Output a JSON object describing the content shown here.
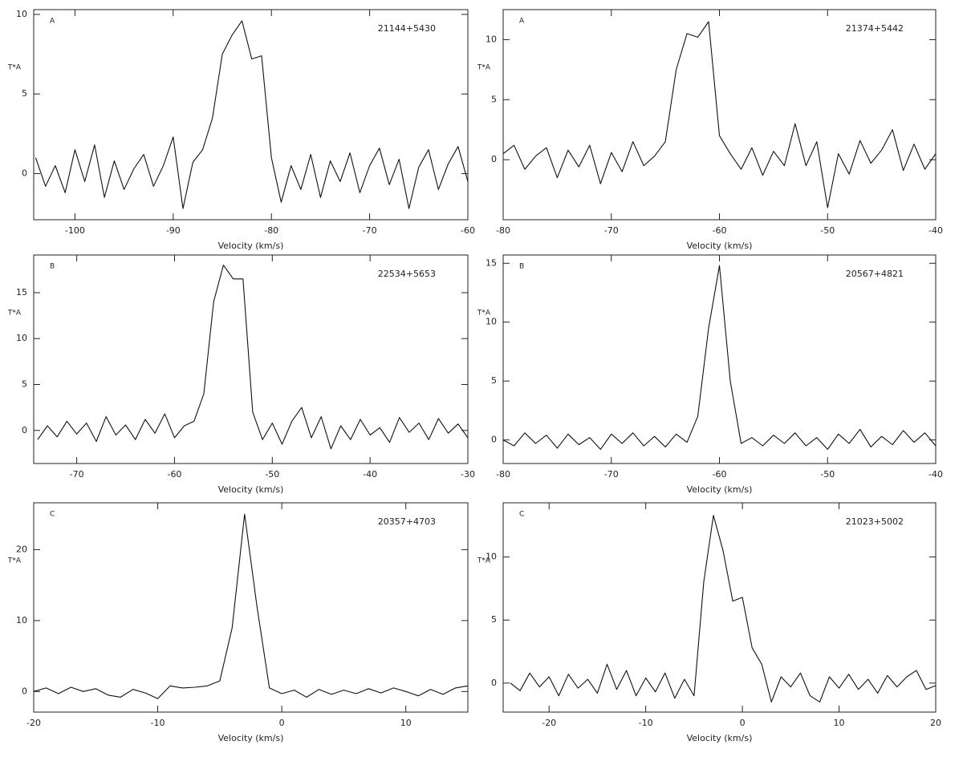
{
  "chart_data": [
    {
      "type": "line",
      "label": "A",
      "title": "21144+5430",
      "xlabel": "Velocity (km/s)",
      "ylabel": "T*A",
      "xlim": [
        -104.2,
        -60
      ],
      "ylim": [
        -2.9,
        10.3
      ],
      "xticks": [
        -100,
        -90,
        -80,
        -70,
        -60
      ],
      "yticks": [
        0,
        5,
        10
      ],
      "color": "#111111",
      "x": [
        -104,
        -103,
        -102,
        -101,
        -100,
        -99,
        -98,
        -97,
        -96,
        -95,
        -94,
        -93,
        -92,
        -91,
        -90,
        -89,
        -88,
        -87,
        -86,
        -85,
        -84,
        -83,
        -82,
        -81,
        -80,
        -79,
        -78,
        -77,
        -76,
        -75,
        -74,
        -73,
        -72,
        -71,
        -70,
        -69,
        -68,
        -67,
        -66,
        -65,
        -64,
        -63,
        -62,
        -61,
        -60
      ],
      "values": [
        1,
        -0.8,
        0.5,
        -1.2,
        1.5,
        -0.5,
        1.8,
        -1.5,
        0.8,
        -1,
        0.3,
        1.2,
        -0.8,
        0.5,
        2.3,
        -2.2,
        0.7,
        1.5,
        3.5,
        7.5,
        8.7,
        9.6,
        7.2,
        7.4,
        1,
        -1.8,
        0.5,
        -1,
        1.2,
        -1.5,
        0.8,
        -0.5,
        1.3,
        -1.2,
        0.5,
        1.6,
        -0.7,
        0.9,
        -2.2,
        0.4,
        1.5,
        -1,
        0.6,
        1.7,
        -0.5
      ]
    },
    {
      "type": "line",
      "label": "A",
      "title": "21374+5442",
      "xlabel": "Velocity (km/s)",
      "ylabel": "T*A",
      "xlim": [
        -80,
        -40
      ],
      "ylim": [
        -5,
        12.5
      ],
      "xticks": [
        -80,
        -70,
        -60,
        -50,
        -40
      ],
      "yticks": [
        0,
        5,
        10
      ],
      "color": "#111111",
      "x": [
        -80,
        -79,
        -78,
        -77,
        -76,
        -75,
        -74,
        -73,
        -72,
        -71,
        -70,
        -69,
        -68,
        -67,
        -66,
        -65,
        -64,
        -63,
        -62,
        -61,
        -60,
        -59,
        -58,
        -57,
        -56,
        -55,
        -54,
        -53,
        -52,
        -51,
        -50,
        -49,
        -48,
        -47,
        -46,
        -45,
        -44,
        -43,
        -42,
        -41,
        -40
      ],
      "values": [
        0.5,
        1.2,
        -0.8,
        0.3,
        1,
        -1.5,
        0.8,
        -0.6,
        1.2,
        -2,
        0.6,
        -1,
        1.5,
        -0.5,
        0.3,
        1.5,
        7.5,
        10.5,
        10.2,
        11.5,
        2,
        0.5,
        -0.8,
        1,
        -1.3,
        0.7,
        -0.5,
        3,
        -0.5,
        1.5,
        -4,
        0.5,
        -1.2,
        1.6,
        -0.3,
        0.8,
        2.5,
        -0.9,
        1.3,
        -0.8,
        0.5
      ]
    },
    {
      "type": "line",
      "label": "B",
      "title": "22534+5653",
      "xlabel": "Velocity (km/s)",
      "ylabel": "T*A",
      "xlim": [
        -74.4,
        -30
      ],
      "ylim": [
        -3.6,
        19.1
      ],
      "xticks": [
        -70,
        -60,
        -50,
        -40,
        -30
      ],
      "yticks": [
        0,
        5,
        10,
        15
      ],
      "color": "#111111",
      "x": [
        -74,
        -73,
        -72,
        -71,
        -70,
        -69,
        -68,
        -67,
        -66,
        -65,
        -64,
        -63,
        -62,
        -61,
        -60,
        -59,
        -58,
        -57,
        -56,
        -55,
        -54,
        -53,
        -52,
        -51,
        -50,
        -49,
        -48,
        -47,
        -46,
        -45,
        -44,
        -43,
        -42,
        -41,
        -40,
        -39,
        -38,
        -37,
        -36,
        -35,
        -34,
        -33,
        -32,
        -31,
        -30
      ],
      "values": [
        -1,
        0.5,
        -0.7,
        1,
        -0.4,
        0.8,
        -1.2,
        1.5,
        -0.5,
        0.6,
        -1,
        1.2,
        -0.3,
        1.8,
        -0.8,
        0.5,
        1,
        4,
        14,
        18,
        16.5,
        16.5,
        2,
        -1,
        0.8,
        -1.5,
        1,
        2.5,
        -0.8,
        1.5,
        -2,
        0.5,
        -1,
        1.2,
        -0.5,
        0.3,
        -1.3,
        1.4,
        -0.2,
        0.8,
        -1,
        1.3,
        -0.3,
        0.7,
        -0.8
      ]
    },
    {
      "type": "line",
      "label": "B",
      "title": "20567+4821",
      "xlabel": "Velocity (km/s)",
      "ylabel": "T*A",
      "xlim": [
        -80,
        -40
      ],
      "ylim": [
        -2,
        15.7
      ],
      "xticks": [
        -80,
        -70,
        -60,
        -50,
        -40
      ],
      "yticks": [
        0,
        5,
        10,
        15
      ],
      "color": "#111111",
      "x": [
        -80,
        -79,
        -78,
        -77,
        -76,
        -75,
        -74,
        -73,
        -72,
        -71,
        -70,
        -69,
        -68,
        -67,
        -66,
        -65,
        -64,
        -63,
        -62,
        -61,
        -60,
        -59,
        -58,
        -57,
        -56,
        -55,
        -54,
        -53,
        -52,
        -51,
        -50,
        -49,
        -48,
        -47,
        -46,
        -45,
        -44,
        -43,
        -42,
        -41,
        -40
      ],
      "values": [
        0,
        -0.5,
        0.6,
        -0.3,
        0.4,
        -0.7,
        0.5,
        -0.4,
        0.2,
        -0.8,
        0.5,
        -0.3,
        0.6,
        -0.5,
        0.3,
        -0.6,
        0.5,
        -0.2,
        2,
        9.5,
        14.8,
        5,
        -0.3,
        0.2,
        -0.5,
        0.4,
        -0.3,
        0.6,
        -0.5,
        0.2,
        -0.8,
        0.5,
        -0.3,
        0.9,
        -0.6,
        0.3,
        -0.4,
        0.8,
        -0.2,
        0.6,
        -0.5
      ]
    },
    {
      "type": "line",
      "label": "C",
      "title": "20357+4703",
      "xlabel": "Velocity (km/s)",
      "ylabel": "T*A",
      "xlim": [
        -20,
        15
      ],
      "ylim": [
        -2.9,
        26.6
      ],
      "xticks": [
        -20,
        -10,
        0,
        10
      ],
      "yticks": [
        0,
        10,
        20
      ],
      "color": "#111111",
      "x": [
        -20,
        -19,
        -18,
        -17,
        -16,
        -15,
        -14,
        -13,
        -12,
        -11,
        -10,
        -9,
        -8,
        -7,
        -6,
        -5,
        -4,
        -3,
        -2,
        -1,
        0,
        1,
        2,
        3,
        4,
        5,
        6,
        7,
        8,
        9,
        10,
        11,
        12,
        13,
        14,
        15
      ],
      "values": [
        0,
        0.5,
        -0.3,
        0.6,
        0,
        0.4,
        -0.5,
        -0.8,
        0.3,
        -0.2,
        -1,
        0.8,
        0.5,
        0.6,
        0.8,
        1.5,
        9,
        25,
        12,
        0.5,
        -0.3,
        0.2,
        -0.8,
        0.3,
        -0.4,
        0.2,
        -0.3,
        0.4,
        -0.2,
        0.5,
        0,
        -0.6,
        0.3,
        -0.4,
        0.5,
        0.8
      ]
    },
    {
      "type": "line",
      "label": "C",
      "title": "21023+5002",
      "xlabel": "Velocity (km/s)",
      "ylabel": "T*A",
      "xlim": [
        -24.75,
        20
      ],
      "ylim": [
        -2.3,
        14.3
      ],
      "xticks": [
        -20,
        -10,
        0,
        10,
        20
      ],
      "yticks": [
        0,
        5,
        10
      ],
      "color": "#111111",
      "x": [
        -24,
        -23,
        -22,
        -21,
        -20,
        -19,
        -18,
        -17,
        -16,
        -15,
        -14,
        -13,
        -12,
        -11,
        -10,
        -9,
        -8,
        -7,
        -6,
        -5,
        -4,
        -3,
        -2,
        -1,
        0,
        1,
        2,
        3,
        4,
        5,
        6,
        7,
        8,
        9,
        10,
        11,
        12,
        13,
        14,
        15,
        16,
        17,
        18,
        19,
        20
      ],
      "values": [
        0,
        -0.6,
        0.8,
        -0.3,
        0.5,
        -1,
        0.7,
        -0.4,
        0.3,
        -0.8,
        1.5,
        -0.5,
        1,
        -1,
        0.4,
        -0.7,
        0.8,
        -1.2,
        0.3,
        -1,
        8,
        13.3,
        10.5,
        6.5,
        6.8,
        2.8,
        1.5,
        -1.5,
        0.5,
        -0.3,
        0.8,
        -1,
        -1.5,
        0.5,
        -0.4,
        0.7,
        -0.5,
        0.3,
        -0.8,
        0.6,
        -0.3,
        0.5,
        1,
        -0.5,
        -0.2
      ]
    }
  ]
}
